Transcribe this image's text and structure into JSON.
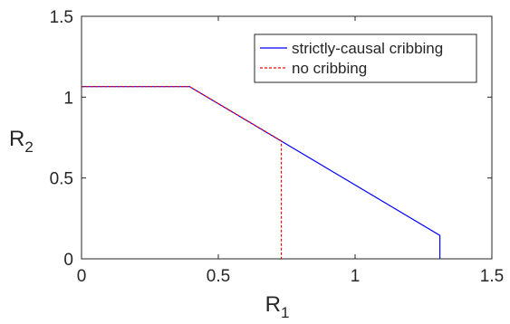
{
  "chart_data": {
    "type": "line",
    "title": "",
    "xlabel": "R",
    "xlabel_sub": "1",
    "ylabel": "R",
    "ylabel_sub": "2",
    "xlim": [
      0,
      1.5
    ],
    "ylim": [
      0,
      1.5
    ],
    "xticks": [
      "0",
      "0.5",
      "1",
      "1.5"
    ],
    "yticks": [
      "0",
      "0.5",
      "1",
      "1.5"
    ],
    "grid": false,
    "legend_position": "top-right",
    "series": [
      {
        "name": "strictly-causal cribbing",
        "color": "#0000ff",
        "style": "solid",
        "x": [
          0,
          0.395,
          1.31,
          1.31
        ],
        "y": [
          1.065,
          1.065,
          0.145,
          0
        ]
      },
      {
        "name": "no cribbing",
        "color": "#ff0000",
        "style": "dashed",
        "x": [
          0,
          0.395,
          0.73,
          0.73
        ],
        "y": [
          1.065,
          1.065,
          0.73,
          0
        ]
      }
    ]
  }
}
